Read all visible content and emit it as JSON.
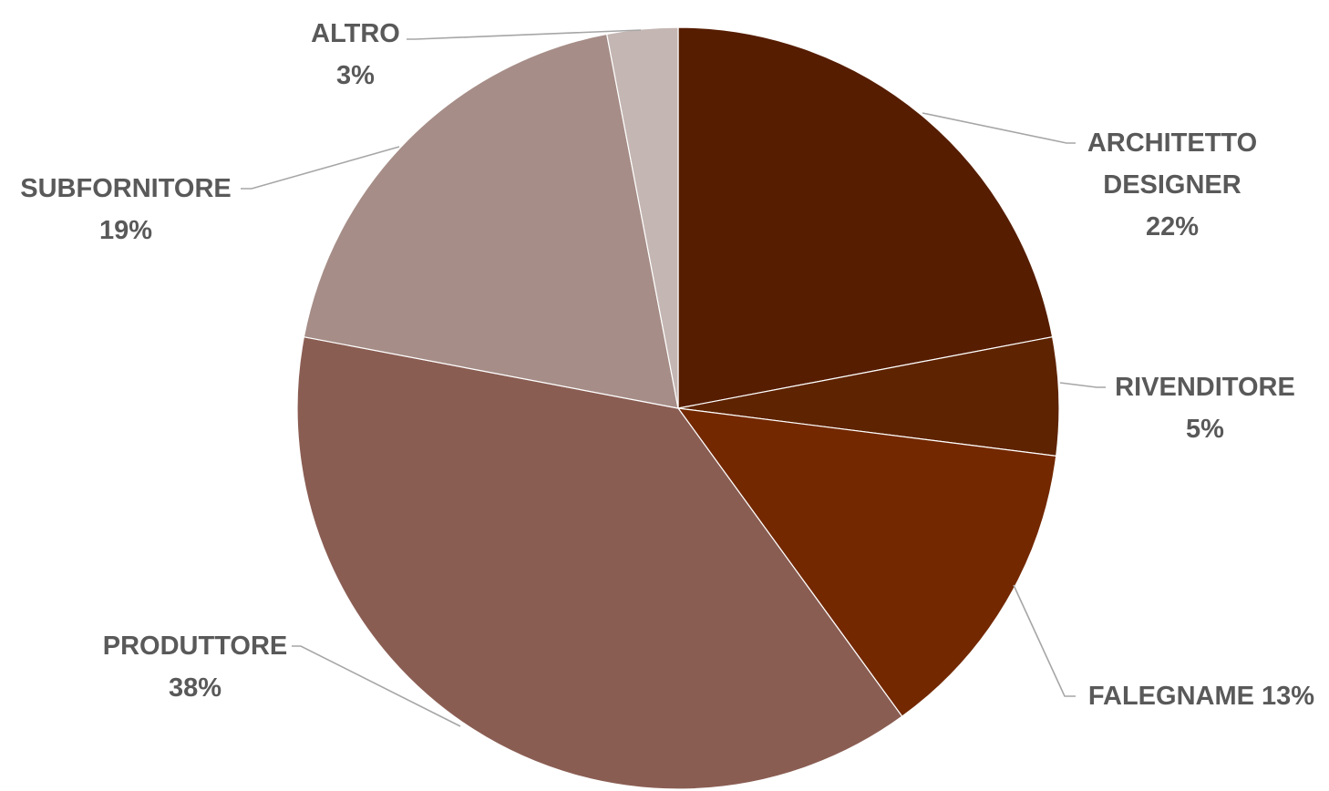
{
  "chart_data": {
    "type": "pie",
    "start_angle_deg": 0,
    "direction": "clockwise",
    "slices": [
      {
        "name": "ARCHITETTO DESIGNER",
        "value": 22,
        "label_lines": [
          "ARCHITETTO",
          "DESIGNER",
          "22%"
        ],
        "color": "#561D00"
      },
      {
        "name": "RIVENDITORE",
        "value": 5,
        "label_lines": [
          "RIVENDITORE",
          "5%"
        ],
        "color": "#5E2300"
      },
      {
        "name": "FALEGNAME",
        "value": 13,
        "label_lines": [
          "FALEGNAME 13%"
        ],
        "color": "#732800"
      },
      {
        "name": "PRODUTTORE",
        "value": 38,
        "label_lines": [
          "PRODUTTORE",
          "38%"
        ],
        "color": "#8A5D53"
      },
      {
        "name": "SUBFORNITORE",
        "value": 19,
        "label_lines": [
          "SUBFORNITORE",
          "19%"
        ],
        "color": "#A68D87"
      },
      {
        "name": "ALTRO",
        "value": 3,
        "label_lines": [
          "ALTRO",
          "3%"
        ],
        "color": "#C4B6B2"
      }
    ]
  }
}
